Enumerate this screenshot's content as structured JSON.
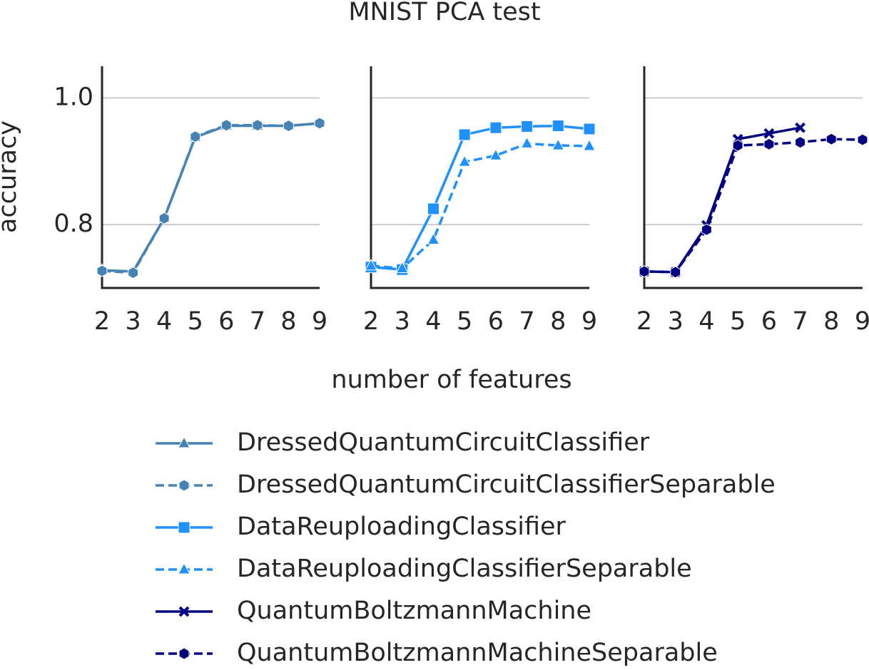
{
  "title": "MNIST PCA  test",
  "xlabel": "number of features",
  "ylabel": "accuracy",
  "chart_data": [
    {
      "type": "line",
      "x": [
        2,
        3,
        4,
        5,
        6,
        7,
        8,
        9
      ],
      "xlim": [
        2,
        9
      ],
      "xticks": [
        2,
        3,
        4,
        5,
        6,
        7,
        8,
        9
      ],
      "ylim": [
        0.7,
        1.05
      ],
      "yticks": [
        0.8,
        {
          "value": 1,
          "label": "1.0"
        }
      ],
      "grid": true,
      "series": [
        {
          "name": "DressedQuantumCircuitClassifier",
          "color": "#4682b4",
          "marker": "triangle",
          "dash": false,
          "values": [
            0.728,
            0.726,
            0.81,
            0.938,
            0.956,
            0.956,
            0.956,
            0.96
          ]
        },
        {
          "name": "DressedQuantumCircuitClassifierSeparable",
          "color": "#4682b4",
          "marker": "hexagon",
          "dash": true,
          "values": [
            0.727,
            0.724,
            0.81,
            0.939,
            0.957,
            0.957,
            0.956,
            0.96
          ]
        }
      ]
    },
    {
      "type": "line",
      "x": [
        2,
        3,
        4,
        5,
        6,
        7,
        8,
        9
      ],
      "xlim": [
        2,
        9
      ],
      "xticks": [
        2,
        3,
        4,
        5,
        6,
        7,
        8,
        9
      ],
      "ylim": [
        0.7,
        1.05
      ],
      "yticks": [
        0.8,
        1
      ],
      "grid": true,
      "series": [
        {
          "name": "DataReuploadingClassifier",
          "color": "#1e90ff",
          "marker": "square",
          "dash": false,
          "values": [
            0.733,
            0.729,
            0.825,
            0.942,
            0.953,
            0.955,
            0.956,
            0.951
          ]
        },
        {
          "name": "DataReuploadingClassifierSeparable",
          "color": "#1e90ff",
          "marker": "triangle",
          "dash": true,
          "values": [
            0.735,
            0.731,
            0.776,
            0.899,
            0.909,
            0.928,
            0.925,
            0.924
          ]
        }
      ]
    },
    {
      "type": "line",
      "x": [
        2,
        3,
        4,
        5,
        6,
        7,
        8,
        9
      ],
      "xlim": [
        2,
        9
      ],
      "xticks": [
        2,
        3,
        4,
        5,
        6,
        7,
        8,
        9
      ],
      "ylim": [
        0.7,
        1.05
      ],
      "yticks": [
        0.8,
        1
      ],
      "grid": true,
      "series": [
        {
          "name": "QuantumBoltzmannMachine",
          "color": "#000080",
          "marker": "x",
          "dash": false,
          "values": [
            0.726,
            0.725,
            0.799,
            0.935,
            0.944,
            0.953,
            null,
            null
          ]
        },
        {
          "name": "QuantumBoltzmannMachineSeparable",
          "color": "#000080",
          "marker": "hexagon",
          "dash": true,
          "values": [
            0.726,
            0.725,
            0.792,
            0.925,
            0.927,
            0.93,
            0.935,
            0.934
          ]
        }
      ]
    }
  ]
}
